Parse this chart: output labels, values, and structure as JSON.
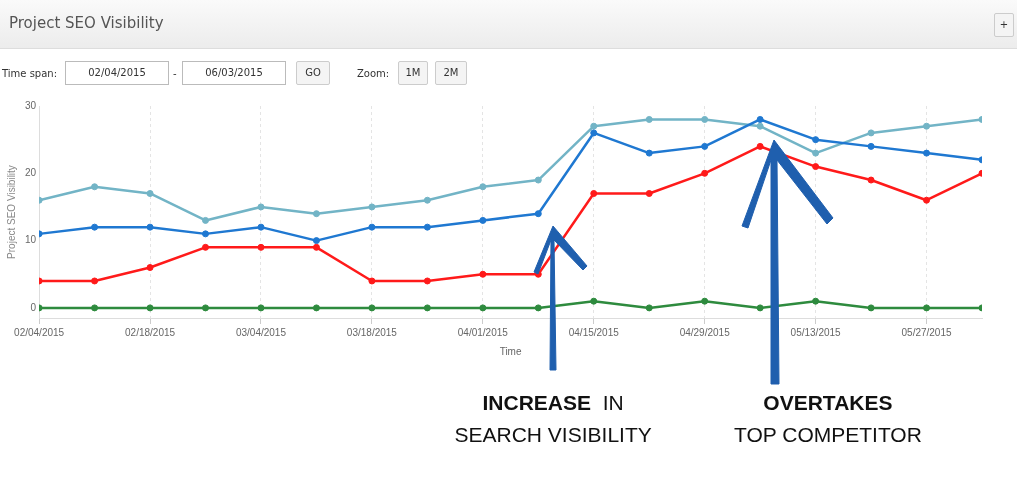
{
  "chart_data": {
    "type": "line",
    "title": "Project SEO Visibility",
    "xlabel": "Time",
    "ylabel": "Project SEO Visibility",
    "x": [
      "2015-02-04",
      "2015-02-11",
      "2015-02-18",
      "2015-02-25",
      "2015-03-04",
      "2015-03-11",
      "2015-03-18",
      "2015-03-25",
      "2015-04-01",
      "2015-04-08",
      "2015-04-15",
      "2015-04-22",
      "2015-04-29",
      "2015-05-06",
      "2015-05-13",
      "2015-05-20",
      "2015-05-27",
      "2015-06-03"
    ],
    "series": [
      {
        "color": "#72b4c6",
        "values": [
          16,
          18,
          17,
          13,
          15,
          14,
          15,
          16,
          18,
          19,
          27,
          28,
          28,
          27,
          23,
          26,
          27,
          28
        ]
      },
      {
        "color": "#1f78d1",
        "values": [
          11,
          12,
          12,
          11,
          12,
          10,
          12,
          12,
          13,
          14,
          26,
          23,
          24,
          28,
          25,
          24,
          23,
          22
        ]
      },
      {
        "color": "#ff1a1a",
        "values": [
          4,
          4,
          6,
          9,
          9,
          9,
          4,
          4,
          5,
          5,
          17,
          17,
          20,
          24,
          21,
          19,
          16,
          20
        ]
      },
      {
        "color": "#2e8b3e",
        "values": [
          0,
          0,
          0,
          0,
          0,
          0,
          0,
          0,
          0,
          0,
          1,
          0,
          1,
          0,
          1,
          0,
          0,
          0
        ]
      }
    ],
    "xlim": [
      "2015-02-04",
      "2015-06-03"
    ],
    "xticks": [
      {
        "value": "2015-02-04",
        "label": "02/04/2015"
      },
      {
        "value": "2015-02-18",
        "label": "02/18/2015"
      },
      {
        "value": "2015-03-04",
        "label": "03/04/2015"
      },
      {
        "value": "2015-03-18",
        "label": "03/18/2015"
      },
      {
        "value": "2015-04-01",
        "label": "04/01/2015"
      },
      {
        "value": "2015-04-15",
        "label": "04/15/2015"
      },
      {
        "value": "2015-04-29",
        "label": "04/29/2015"
      },
      {
        "value": "2015-05-13",
        "label": "05/13/2015"
      },
      {
        "value": "2015-05-27",
        "label": "05/27/2015"
      }
    ],
    "ylim": [
      -1.5,
      30
    ],
    "yticks": [
      0,
      10,
      20,
      30
    ],
    "grid": "x",
    "legend": false,
    "marker": "circle",
    "line_style": "solid",
    "annotations": [
      "Time span:",
      "02/04/2015",
      "-",
      "06/03/2015",
      "GO",
      "Zoom:",
      "1M",
      "2M",
      "+",
      "INCREASE  IN\nSEARCH VISIBILITY",
      "OVERTAKES\nTOP COMPETITOR"
    ]
  }
}
